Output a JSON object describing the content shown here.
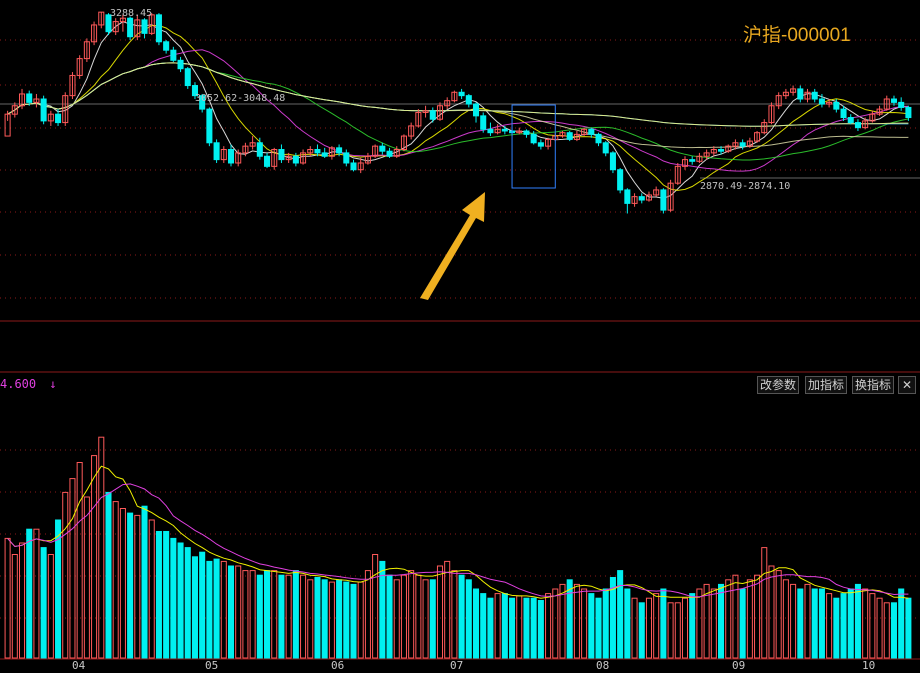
{
  "title": "沪指-000001",
  "volume_panel": {
    "label": "4.600",
    "arrow": "↓"
  },
  "buttons": {
    "params": "改参数",
    "add": "加指标",
    "switch": "换指标",
    "close": "✕"
  },
  "annotations": {
    "high": "3288.45",
    "range_upper": "3052.62-3048.48",
    "range_lower": "2870.49-2874.10"
  },
  "colors": {
    "bull": "#ff5a5a",
    "bear": "#00f0f0",
    "ma5": "#f0f0f0",
    "ma10": "#f0f000",
    "ma20": "#e040e0",
    "ma30": "#30d030",
    "ma60": "#d0d0a0",
    "ma120": "#40c0ff",
    "ma250": "#f0f080",
    "highlight": "#3080ff",
    "arrow": "#f0b020"
  },
  "chart_data": {
    "type": "candlestick",
    "x_months": [
      "04",
      "05",
      "06",
      "07",
      "08",
      "09",
      "10"
    ],
    "price": {
      "max": 3288.45,
      "min": 2635,
      "bars": [
        [
          2920,
          2985,
          2965,
          2995
        ],
        [
          2985,
          3010,
          2975,
          3020
        ],
        [
          3010,
          3045,
          3000,
          3060
        ],
        [
          3045,
          3020,
          3010,
          3055
        ],
        [
          3020,
          3030,
          3005,
          3045
        ],
        [
          3030,
          2965,
          2955,
          3040
        ],
        [
          2965,
          2985,
          2950,
          2995
        ],
        [
          2985,
          2960,
          2950,
          3000
        ],
        [
          2960,
          3040,
          2950,
          3050
        ],
        [
          3040,
          3100,
          3030,
          3110
        ],
        [
          3100,
          3150,
          3090,
          3160
        ],
        [
          3150,
          3200,
          3140,
          3210
        ],
        [
          3200,
          3250,
          3190,
          3260
        ],
        [
          3250,
          3288,
          3240,
          3288
        ],
        [
          3280,
          3230,
          3220,
          3285
        ],
        [
          3230,
          3260,
          3220,
          3270
        ],
        [
          3260,
          3270,
          3230,
          3280
        ],
        [
          3270,
          3215,
          3205,
          3275
        ],
        [
          3215,
          3265,
          3205,
          3280
        ],
        [
          3265,
          3225,
          3210,
          3270
        ],
        [
          3225,
          3280,
          3220,
          3285
        ],
        [
          3280,
          3200,
          3190,
          3285
        ],
        [
          3200,
          3175,
          3165,
          3205
        ],
        [
          3175,
          3145,
          3140,
          3185
        ],
        [
          3145,
          3120,
          3110,
          3155
        ],
        [
          3120,
          3070,
          3060,
          3125
        ],
        [
          3070,
          3040,
          3030,
          3080
        ],
        [
          3040,
          3000,
          2990,
          3045
        ],
        [
          3000,
          2900,
          2890,
          3005
        ],
        [
          2900,
          2850,
          2840,
          2910
        ],
        [
          2850,
          2880,
          2840,
          2890
        ],
        [
          2880,
          2840,
          2830,
          2895
        ],
        [
          2840,
          2870,
          2830,
          2880
        ],
        [
          2870,
          2890,
          2860,
          2900
        ],
        [
          2890,
          2900,
          2880,
          2920
        ],
        [
          2900,
          2860,
          2850,
          2915
        ],
        [
          2860,
          2830,
          2825,
          2870
        ],
        [
          2830,
          2880,
          2820,
          2885
        ],
        [
          2880,
          2850,
          2840,
          2895
        ],
        [
          2850,
          2860,
          2840,
          2870
        ],
        [
          2860,
          2840,
          2830,
          2870
        ],
        [
          2840,
          2870,
          2835,
          2880
        ],
        [
          2870,
          2880,
          2860,
          2890
        ],
        [
          2880,
          2870,
          2860,
          2895
        ],
        [
          2870,
          2860,
          2855,
          2885
        ],
        [
          2860,
          2885,
          2850,
          2890
        ],
        [
          2885,
          2870,
          2860,
          2895
        ],
        [
          2870,
          2840,
          2830,
          2880
        ],
        [
          2840,
          2820,
          2815,
          2850
        ],
        [
          2820,
          2840,
          2810,
          2855
        ],
        [
          2840,
          2860,
          2835,
          2870
        ],
        [
          2860,
          2890,
          2855,
          2895
        ],
        [
          2890,
          2875,
          2865,
          2900
        ],
        [
          2875,
          2860,
          2855,
          2885
        ],
        [
          2860,
          2880,
          2855,
          2890
        ],
        [
          2880,
          2920,
          2875,
          2925
        ],
        [
          2920,
          2950,
          2910,
          2960
        ],
        [
          2950,
          2990,
          2945,
          3000
        ],
        [
          2990,
          2995,
          2975,
          3010
        ],
        [
          2995,
          2970,
          2960,
          3005
        ],
        [
          2970,
          3010,
          2965,
          3020
        ],
        [
          3010,
          3025,
          3000,
          3035
        ],
        [
          3025,
          3050,
          3020,
          3055
        ],
        [
          3050,
          3040,
          3030,
          3060
        ],
        [
          3040,
          3015,
          3005,
          3045
        ],
        [
          3015,
          2980,
          2960,
          3020
        ],
        [
          2980,
          2940,
          2930,
          2990
        ],
        [
          2940,
          2930,
          2920,
          2960
        ],
        [
          2930,
          2940,
          2925,
          2955
        ],
        [
          2940,
          2935,
          2925,
          2950
        ],
        [
          2935,
          2930,
          2920,
          2945
        ],
        [
          2930,
          2935,
          2925,
          2945
        ],
        [
          2935,
          2925,
          2915,
          2940
        ],
        [
          2925,
          2900,
          2895,
          2935
        ],
        [
          2900,
          2890,
          2880,
          2910
        ],
        [
          2890,
          2910,
          2880,
          2915
        ],
        [
          2910,
          2920,
          2905,
          2930
        ],
        [
          2920,
          2930,
          2915,
          2935
        ],
        [
          2930,
          2910,
          2905,
          2935
        ],
        [
          2910,
          2925,
          2905,
          2935
        ],
        [
          2925,
          2940,
          2920,
          2945
        ],
        [
          2940,
          2925,
          2915,
          2945
        ],
        [
          2925,
          2900,
          2890,
          2930
        ],
        [
          2900,
          2870,
          2860,
          2905
        ],
        [
          2870,
          2820,
          2810,
          2875
        ],
        [
          2820,
          2760,
          2750,
          2825
        ],
        [
          2760,
          2720,
          2690,
          2765
        ],
        [
          2720,
          2740,
          2710,
          2750
        ],
        [
          2740,
          2730,
          2720,
          2750
        ],
        [
          2730,
          2745,
          2725,
          2755
        ],
        [
          2745,
          2760,
          2740,
          2770
        ],
        [
          2760,
          2700,
          2690,
          2765
        ],
        [
          2700,
          2780,
          2695,
          2790
        ],
        [
          2780,
          2830,
          2775,
          2840
        ],
        [
          2830,
          2850,
          2820,
          2860
        ],
        [
          2850,
          2845,
          2835,
          2860
        ],
        [
          2845,
          2860,
          2840,
          2870
        ],
        [
          2860,
          2870,
          2850,
          2880
        ],
        [
          2870,
          2880,
          2860,
          2890
        ],
        [
          2880,
          2875,
          2865,
          2890
        ],
        [
          2875,
          2890,
          2870,
          2895
        ],
        [
          2890,
          2900,
          2880,
          2910
        ],
        [
          2900,
          2890,
          2880,
          2910
        ],
        [
          2890,
          2905,
          2885,
          2915
        ],
        [
          2905,
          2930,
          2900,
          2935
        ],
        [
          2930,
          2960,
          2925,
          2970
        ],
        [
          2960,
          3010,
          2955,
          3020
        ],
        [
          3010,
          3040,
          3000,
          3050
        ],
        [
          3040,
          3050,
          3030,
          3060
        ],
        [
          3050,
          3060,
          3040,
          3070
        ],
        [
          3060,
          3030,
          3020,
          3070
        ],
        [
          3030,
          3050,
          3020,
          3060
        ],
        [
          3050,
          3030,
          3020,
          3060
        ],
        [
          3030,
          3015,
          3005,
          3045
        ],
        [
          3015,
          3020,
          3005,
          3030
        ],
        [
          3020,
          3000,
          2990,
          3030
        ],
        [
          3000,
          2975,
          2965,
          3010
        ],
        [
          2975,
          2960,
          2955,
          2985
        ],
        [
          2960,
          2945,
          2935,
          2970
        ],
        [
          2945,
          2965,
          2940,
          2975
        ],
        [
          2965,
          2985,
          2960,
          2995
        ],
        [
          2985,
          3000,
          2980,
          3010
        ],
        [
          3000,
          3030,
          2995,
          3040
        ],
        [
          3030,
          3020,
          3010,
          3040
        ],
        [
          3020,
          3005,
          2995,
          3035
        ],
        [
          3005,
          2975,
          2965,
          3010
        ]
      ]
    },
    "volume": {
      "max": 100,
      "values": [
        52,
        45,
        50,
        56,
        56,
        48,
        45,
        60,
        72,
        78,
        85,
        70,
        88,
        96,
        72,
        68,
        65,
        63,
        62,
        66,
        60,
        55,
        55,
        52,
        50,
        48,
        44,
        46,
        42,
        43,
        42,
        40,
        40,
        38,
        38,
        36,
        38,
        38,
        36,
        36,
        38,
        36,
        34,
        35,
        34,
        33,
        34,
        33,
        32,
        33,
        38,
        45,
        42,
        36,
        34,
        36,
        38,
        36,
        34,
        34,
        40,
        42,
        38,
        36,
        34,
        30,
        28,
        26,
        28,
        28,
        26,
        27,
        26,
        26,
        25,
        28,
        30,
        32,
        34,
        32,
        30,
        28,
        26,
        30,
        35,
        38,
        30,
        26,
        24,
        26,
        28,
        30,
        24,
        24,
        26,
        28,
        30,
        32,
        30,
        32,
        34,
        36,
        30,
        34,
        36,
        48,
        40,
        38,
        34,
        32,
        30,
        32,
        30,
        30,
        28,
        26,
        28,
        30,
        32,
        30,
        28,
        26,
        24,
        24,
        30,
        26
      ]
    },
    "highlight_range_index": [
      71,
      75
    ]
  }
}
